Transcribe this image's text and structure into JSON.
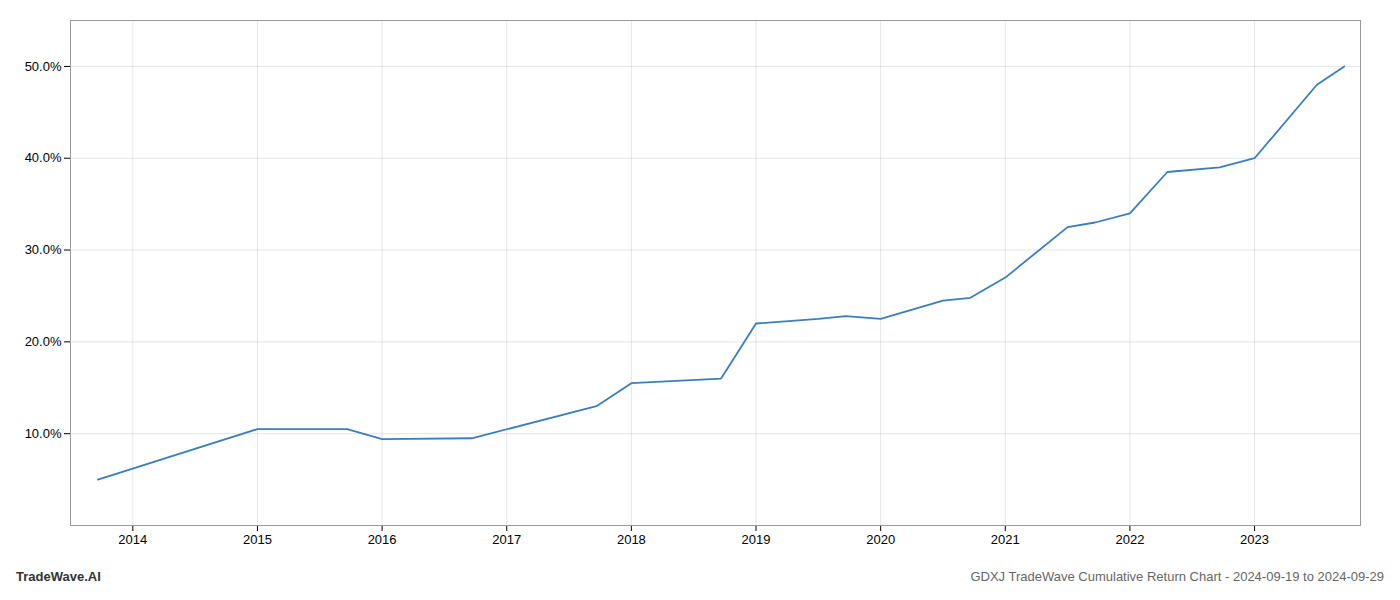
{
  "chart_data": {
    "type": "line",
    "x": [
      2013.72,
      2015.0,
      2015.72,
      2016.0,
      2016.72,
      2017.72,
      2018.0,
      2018.72,
      2019.0,
      2019.5,
      2019.72,
      2020.0,
      2020.5,
      2020.72,
      2021.0,
      2021.5,
      2021.72,
      2022.0,
      2022.3,
      2022.72,
      2023.0,
      2023.5,
      2023.72
    ],
    "values": [
      5.0,
      10.5,
      10.5,
      9.4,
      9.5,
      13.0,
      15.5,
      16.0,
      22.0,
      22.5,
      22.8,
      22.5,
      24.5,
      24.8,
      27.0,
      32.5,
      33.0,
      34.0,
      38.5,
      39.0,
      40.0,
      48.0,
      50.0
    ],
    "color": "#3a7ebf",
    "xlim": [
      2013.5,
      2023.85
    ],
    "xticks": [
      2014,
      2015,
      2016,
      2017,
      2018,
      2019,
      2020,
      2021,
      2022,
      2023
    ],
    "ylim": [
      0,
      55
    ],
    "yticks": [
      {
        "value": 10.0,
        "label": "10.0%"
      },
      {
        "value": 20.0,
        "label": "20.0%"
      },
      {
        "value": 30.0,
        "label": "30.0%"
      },
      {
        "value": 40.0,
        "label": "40.0%"
      },
      {
        "value": 50.0,
        "label": "50.0%"
      }
    ],
    "grid": true,
    "annotations": [
      "TradeWave.AI",
      "GDXJ TradeWave Cumulative Return Chart - 2024-09-19 to 2024-09-29"
    ]
  }
}
